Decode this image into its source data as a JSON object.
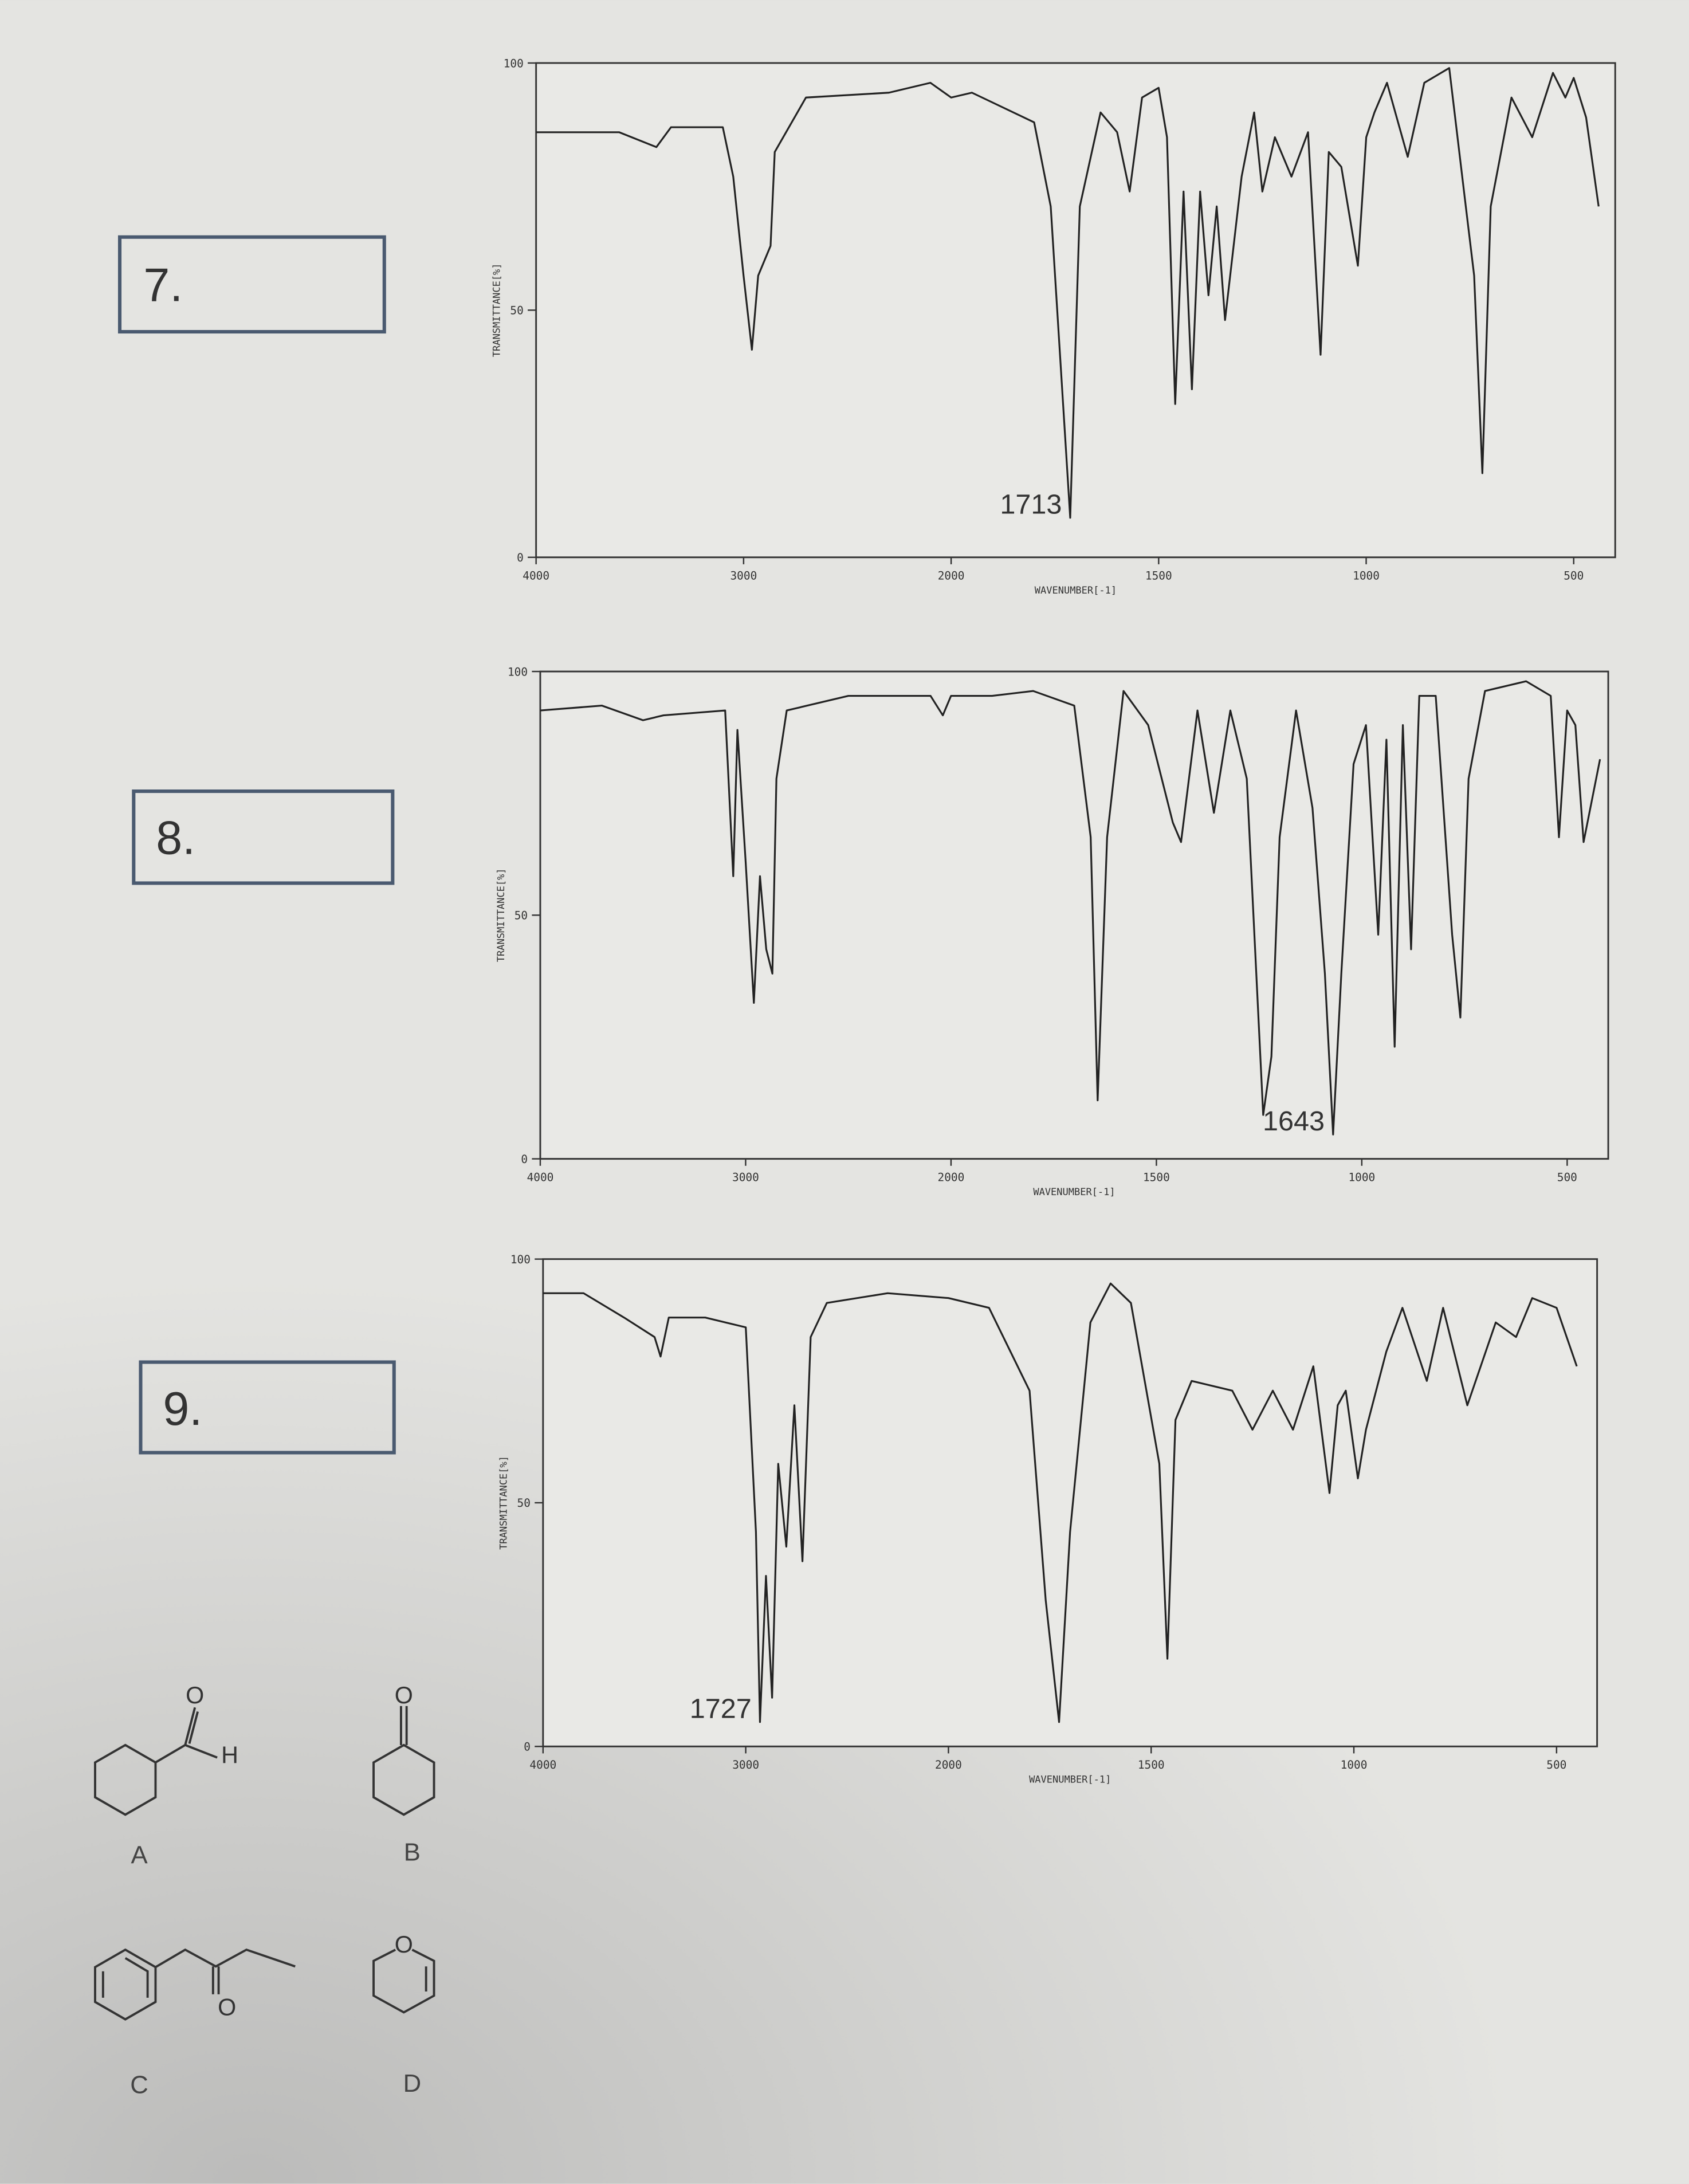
{
  "questions": [
    "7.",
    "8.",
    "9."
  ],
  "structures": [
    {
      "label": "A",
      "atoms": [
        "O",
        "H"
      ]
    },
    {
      "label": "B",
      "atoms": [
        "O"
      ]
    },
    {
      "label": "C",
      "atoms": [
        "O"
      ]
    },
    {
      "label": "D",
      "atoms": [
        "O"
      ]
    }
  ],
  "chart_data": [
    {
      "type": "line",
      "ylabel": "TRANSMITTANCE[%]",
      "xlabel": "WAVENUMBER[-1]",
      "annotation": "1713",
      "xlim": [
        4000,
        400
      ],
      "xbreak": 2000,
      "ylim": [
        0,
        100
      ],
      "xticks": [
        4000,
        3000,
        2000,
        1500,
        1000,
        500
      ],
      "yticks": [
        0,
        50,
        100
      ],
      "color": "#222222",
      "x": [
        4000,
        3600,
        3420,
        3350,
        3100,
        3050,
        3000,
        2960,
        2930,
        2870,
        2850,
        2700,
        2300,
        2100,
        2000,
        1950,
        1900,
        1800,
        1760,
        1713,
        1690,
        1640,
        1600,
        1570,
        1540,
        1500,
        1480,
        1460,
        1440,
        1420,
        1400,
        1380,
        1360,
        1340,
        1300,
        1270,
        1250,
        1220,
        1180,
        1140,
        1110,
        1090,
        1060,
        1020,
        1000,
        980,
        950,
        900,
        860,
        800,
        760,
        740,
        720,
        700,
        650,
        600,
        550,
        520,
        500,
        470,
        440
      ],
      "values": [
        86,
        86,
        83,
        87,
        87,
        77,
        57,
        42,
        57,
        63,
        82,
        93,
        94,
        96,
        93,
        94,
        92,
        88,
        71,
        8,
        71,
        90,
        86,
        74,
        93,
        95,
        85,
        31,
        74,
        34,
        74,
        53,
        71,
        48,
        77,
        90,
        74,
        85,
        77,
        86,
        41,
        82,
        79,
        59,
        85,
        90,
        96,
        81,
        96,
        99,
        71,
        57,
        17,
        71,
        93,
        85,
        98,
        93,
        97,
        89,
        71
      ]
    },
    {
      "type": "line",
      "ylabel": "TRANSMITTANCE[%]",
      "xlabel": "WAVENUMBER[-1]",
      "annotation": "1643",
      "xlim": [
        4000,
        400
      ],
      "xbreak": 2000,
      "ylim": [
        0,
        100
      ],
      "xticks": [
        4000,
        3000,
        2000,
        1500,
        1000,
        500
      ],
      "yticks": [
        0,
        50,
        100
      ],
      "color": "#222222",
      "x": [
        4000,
        3700,
        3500,
        3400,
        3100,
        3060,
        3040,
        3000,
        2960,
        2930,
        2900,
        2870,
        2850,
        2800,
        2500,
        2100,
        2040,
        2000,
        1900,
        1800,
        1700,
        1660,
        1643,
        1620,
        1580,
        1520,
        1460,
        1440,
        1400,
        1360,
        1320,
        1280,
        1240,
        1220,
        1200,
        1160,
        1120,
        1090,
        1070,
        1050,
        1020,
        990,
        960,
        940,
        920,
        900,
        880,
        860,
        820,
        780,
        760,
        740,
        700,
        600,
        540,
        520,
        500,
        480,
        460,
        420
      ],
      "values": [
        92,
        93,
        90,
        91,
        92,
        58,
        88,
        61,
        32,
        58,
        43,
        38,
        78,
        92,
        95,
        95,
        91,
        95,
        95,
        96,
        93,
        66,
        12,
        66,
        96,
        89,
        69,
        65,
        92,
        71,
        92,
        78,
        9,
        21,
        66,
        92,
        72,
        38,
        5,
        38,
        81,
        89,
        46,
        86,
        23,
        89,
        43,
        95,
        95,
        46,
        29,
        78,
        96,
        98,
        95,
        66,
        92,
        89,
        65,
        82
      ]
    },
    {
      "type": "line",
      "ylabel": "TRANSMITTANCE[%]",
      "xlabel": "WAVENUMBER[-1]",
      "annotation": "1727",
      "xlim": [
        4000,
        400
      ],
      "xbreak": 2000,
      "ylim": [
        0,
        100
      ],
      "xticks": [
        4000,
        3000,
        2000,
        1500,
        1000,
        500
      ],
      "yticks": [
        0,
        50,
        100
      ],
      "color": "#222222",
      "x": [
        4000,
        3800,
        3600,
        3450,
        3420,
        3380,
        3200,
        3000,
        2950,
        2930,
        2900,
        2870,
        2840,
        2800,
        2760,
        2720,
        2680,
        2600,
        2300,
        2000,
        1900,
        1800,
        1760,
        1727,
        1700,
        1650,
        1600,
        1550,
        1480,
        1460,
        1440,
        1400,
        1300,
        1250,
        1200,
        1150,
        1100,
        1060,
        1040,
        1020,
        990,
        970,
        920,
        880,
        820,
        780,
        720,
        650,
        600,
        560,
        500,
        450
      ],
      "values": [
        93,
        93,
        88,
        84,
        80,
        88,
        88,
        86,
        44,
        5,
        35,
        10,
        58,
        41,
        70,
        38,
        84,
        91,
        93,
        92,
        90,
        73,
        30,
        5,
        44,
        87,
        95,
        91,
        58,
        18,
        67,
        75,
        73,
        65,
        73,
        65,
        78,
        52,
        70,
        73,
        55,
        65,
        81,
        90,
        75,
        90,
        70,
        87,
        84,
        92,
        90,
        78
      ]
    }
  ]
}
